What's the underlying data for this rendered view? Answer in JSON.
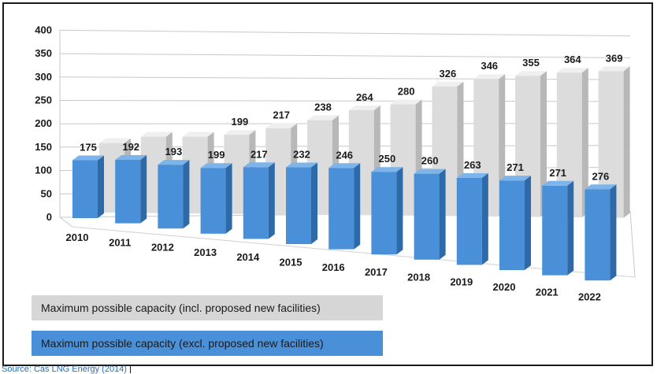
{
  "chart_data": {
    "type": "bar",
    "categories": [
      "2010",
      "2011",
      "2012",
      "2013",
      "2014",
      "2015",
      "2016",
      "2017",
      "2018",
      "2019",
      "2020",
      "2021",
      "2022"
    ],
    "series": [
      {
        "name": "Maximum possible capacity (incl. proposed new facilities)",
        "values": [
          175,
          192,
          193,
          199,
          217,
          238,
          264,
          280,
          326,
          346,
          355,
          364,
          369
        ],
        "color": "#d9d9d9"
      },
      {
        "name": "Maximum possible capacity (excl. proposed new facilities)",
        "values": [
          175,
          192,
          193,
          199,
          217,
          232,
          246,
          250,
          260,
          263,
          271,
          271,
          276
        ],
        "color": "#4a8fd6"
      }
    ],
    "data_labels_front": [
      "175",
      "192",
      "193",
      "199",
      "217",
      "232",
      "246",
      "250",
      "260",
      "263",
      "271",
      "271",
      "276"
    ],
    "data_labels_back": [
      "199",
      "217",
      "238",
      "264",
      "280",
      "326",
      "346",
      "355",
      "364",
      "369"
    ],
    "yticks": [
      "0",
      "50",
      "100",
      "150",
      "200",
      "250",
      "300",
      "350",
      "400"
    ],
    "ylim": [
      0,
      400
    ],
    "grid": true,
    "legend_position": "bottom-left",
    "title": "",
    "xlabel": "",
    "ylabel": ""
  },
  "source_caption": "Source: Cas LNG Energy (2014)"
}
